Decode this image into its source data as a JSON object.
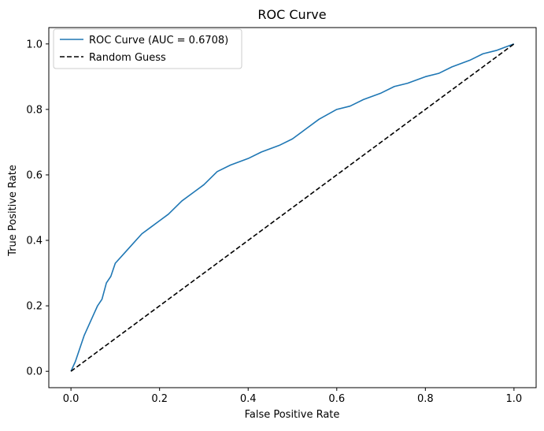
{
  "chart_data": {
    "type": "line",
    "title": "ROC Curve",
    "xlabel": "False Positive Rate",
    "ylabel": "True Positive Rate",
    "xlim": [
      -0.05,
      1.05
    ],
    "ylim": [
      -0.05,
      1.05
    ],
    "xticks": [
      0.0,
      0.2,
      0.4,
      0.6,
      0.8,
      1.0
    ],
    "xtick_labels": [
      "0.0",
      "0.2",
      "0.4",
      "0.6",
      "0.8",
      "1.0"
    ],
    "yticks": [
      0.0,
      0.2,
      0.4,
      0.6,
      0.8,
      1.0
    ],
    "ytick_labels": [
      "0.0",
      "0.2",
      "0.4",
      "0.6",
      "0.8",
      "1.0"
    ],
    "grid": false,
    "legend_position": "top-left",
    "series": [
      {
        "name": "ROC Curve (AUC = 0.6708)",
        "color": "#1f77b4",
        "style": "solid",
        "x": [
          0.0,
          0.01,
          0.02,
          0.03,
          0.04,
          0.05,
          0.06,
          0.07,
          0.08,
          0.09,
          0.1,
          0.12,
          0.14,
          0.16,
          0.18,
          0.2,
          0.22,
          0.25,
          0.28,
          0.3,
          0.33,
          0.36,
          0.4,
          0.43,
          0.47,
          0.5,
          0.53,
          0.56,
          0.6,
          0.63,
          0.66,
          0.7,
          0.73,
          0.76,
          0.8,
          0.83,
          0.86,
          0.9,
          0.93,
          0.96,
          0.98,
          1.0
        ],
        "y": [
          0.0,
          0.03,
          0.07,
          0.11,
          0.14,
          0.17,
          0.2,
          0.22,
          0.27,
          0.29,
          0.33,
          0.36,
          0.39,
          0.42,
          0.44,
          0.46,
          0.48,
          0.52,
          0.55,
          0.57,
          0.61,
          0.63,
          0.65,
          0.67,
          0.69,
          0.71,
          0.74,
          0.77,
          0.8,
          0.81,
          0.83,
          0.85,
          0.87,
          0.88,
          0.9,
          0.91,
          0.93,
          0.95,
          0.97,
          0.98,
          0.99,
          1.0
        ]
      },
      {
        "name": "Random Guess",
        "color": "#000000",
        "style": "dashed",
        "x": [
          0.0,
          1.0
        ],
        "y": [
          0.0,
          1.0
        ]
      }
    ]
  }
}
